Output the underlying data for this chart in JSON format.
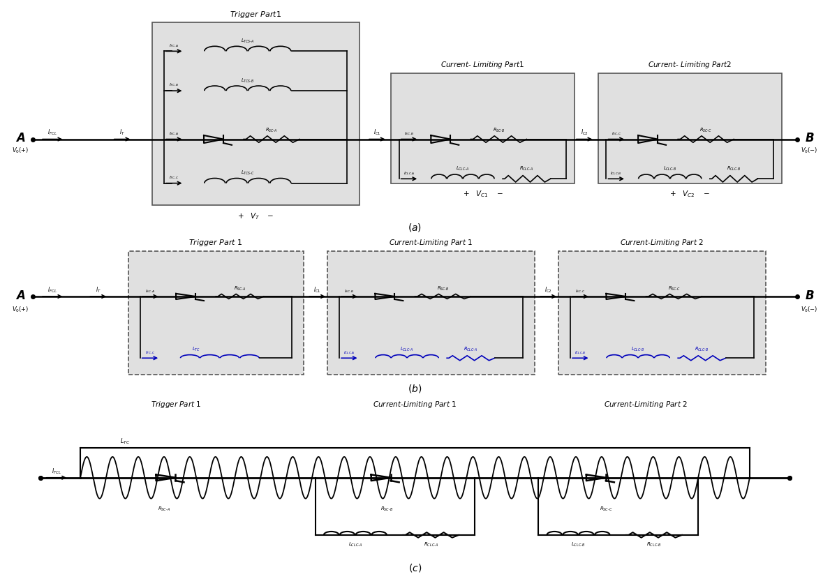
{
  "bg_color": "#ffffff",
  "box_color": "#e0e0e0",
  "line_color": "#000000",
  "blue_color": "#0000bb",
  "fig_width": 11.89,
  "fig_height": 8.3
}
